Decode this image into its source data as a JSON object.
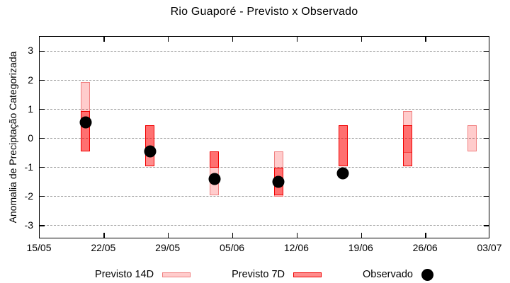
{
  "title": "Rio Guaporé - Previsto x Observado",
  "colors": {
    "previsto_14d_fill": "#ffcccc",
    "previsto_14d_fill_rgba": "rgba(255,0,0,0.2)",
    "previsto_14d_border": "#f08080",
    "previsto_7d_fill_rgba": "rgba(255,0,0,0.45)",
    "previsto_7d_border": "#f00000",
    "observado_color": "#000000",
    "grid_color": "#a0a0a0"
  },
  "chart_data": {
    "type": "candlestick-range",
    "title": "Rio Guaporé - Previsto x Observado",
    "xlabel": "",
    "ylabel": "Anomalia de Preciptação Categorizada",
    "ylim": [
      -3.5,
      3.5
    ],
    "grid": "horizontal-dashed",
    "yticks": [
      3,
      2,
      1,
      0,
      -1,
      -2,
      -3
    ],
    "xtick_labels": [
      "15/05",
      "22/05",
      "29/05",
      "05/06",
      "12/06",
      "19/06",
      "26/06",
      "03/07"
    ],
    "x_axis_span_days": 49,
    "legend_position": "below-plot",
    "legend": [
      {
        "label": "Previsto 14D",
        "marker": "light-box"
      },
      {
        "label": "Previsto 7D",
        "marker": "dark-box"
      },
      {
        "label": "Observado",
        "marker": "black-dot"
      }
    ],
    "points": [
      {
        "date": "20/05",
        "day": 5,
        "previsto_14d": [
          1.95,
          -0.45
        ],
        "previsto_7d": [
          0.95,
          -0.45
        ],
        "observado": 0.55
      },
      {
        "date": "27/05",
        "day": 12,
        "previsto_14d": [
          0.45,
          -0.5
        ],
        "previsto_7d": [
          0.45,
          -0.95
        ],
        "observado": -0.45
      },
      {
        "date": "03/06",
        "day": 19,
        "previsto_14d": [
          -0.45,
          -1.95
        ],
        "previsto_7d": [
          -0.45,
          -1.0
        ],
        "observado": -1.4
      },
      {
        "date": "10/06",
        "day": 26,
        "previsto_14d": [
          -0.45,
          -2.0
        ],
        "previsto_7d": [
          -1.0,
          -1.95
        ],
        "observado": -1.5
      },
      {
        "date": "17/06",
        "day": 33,
        "previsto_14d": [
          0.45,
          -0.95
        ],
        "previsto_7d": [
          0.45,
          -0.95
        ],
        "observado": -1.2
      },
      {
        "date": "24/06",
        "day": 40,
        "previsto_14d": [
          0.95,
          -0.5
        ],
        "previsto_7d": [
          0.45,
          -0.95
        ],
        "observado": null
      },
      {
        "date": "01/07",
        "day": 47,
        "previsto_14d": [
          0.45,
          -0.45
        ],
        "previsto_7d": null,
        "observado": null
      }
    ]
  }
}
